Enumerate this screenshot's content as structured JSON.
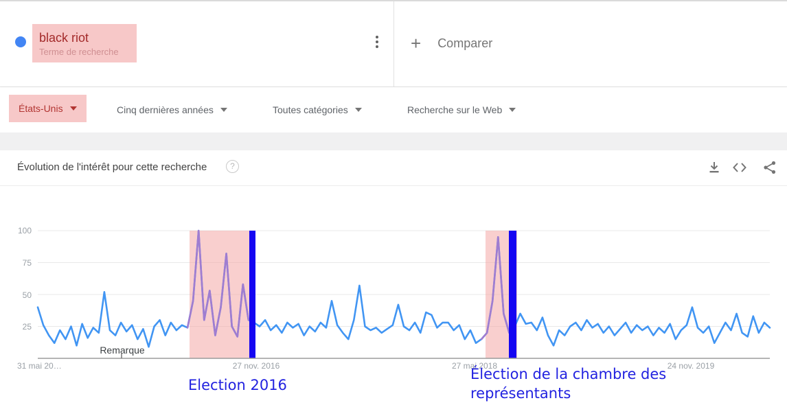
{
  "header": {
    "term": {
      "label": "black riot",
      "sublabel": "Terme de recherche"
    },
    "compare": {
      "plus_label": "+",
      "label": "Comparer"
    }
  },
  "filters": {
    "region": "États-Unis",
    "time": "Cinq dernières années",
    "category": "Toutes catégories",
    "search_type": "Recherche sur le Web"
  },
  "section": {
    "title": "Évolution de l'intérêt pour cette recherche",
    "help_label": "?"
  },
  "chart_data": {
    "type": "line",
    "title": "Évolution de l'intérêt pour cette recherche",
    "xlabel": "",
    "ylabel": "",
    "ylim": [
      0,
      100
    ],
    "grid": true,
    "y_tick_labels": [
      "100",
      "75",
      "50",
      "25"
    ],
    "x_tick_labels": [
      "31 mai 20…",
      "27 nov. 2016",
      "27 mai 2018",
      "24 nov. 2019"
    ],
    "note_label": "Remarque",
    "note_tick_x": 177,
    "series": [
      {
        "name": "black riot",
        "values": [
          40,
          26,
          18,
          12,
          22,
          15,
          25,
          10,
          27,
          16,
          24,
          20,
          52,
          22,
          18,
          28,
          21,
          26,
          15,
          23,
          9,
          25,
          30,
          18,
          28,
          22,
          26,
          24,
          45,
          100,
          30,
          53,
          18,
          40,
          82,
          25,
          17,
          58,
          30,
          28,
          25,
          30,
          22,
          26,
          20,
          28,
          24,
          27,
          18,
          25,
          21,
          28,
          24,
          45,
          26,
          20,
          15,
          30,
          57,
          25,
          22,
          24,
          20,
          23,
          26,
          42,
          25,
          22,
          28,
          20,
          36,
          34,
          24,
          28,
          28,
          22,
          26,
          15,
          22,
          12,
          15,
          20,
          45,
          95,
          35,
          20,
          25,
          35,
          27,
          28,
          22,
          32,
          18,
          10,
          22,
          18,
          25,
          28,
          22,
          30,
          24,
          27,
          20,
          25,
          18,
          23,
          28,
          20,
          26,
          22,
          25,
          18,
          24,
          20,
          27,
          15,
          22,
          26,
          40,
          24,
          20,
          25,
          12,
          20,
          28,
          22,
          35,
          20,
          17,
          33,
          20,
          28,
          24
        ]
      }
    ],
    "highlight_regions": [
      {
        "x": 276,
        "w": 87
      },
      {
        "x": 707,
        "w": 46
      }
    ],
    "event_bars": [
      {
        "x": 363,
        "w": 9
      },
      {
        "x": 741,
        "w": 11
      }
    ],
    "purple_index_ranges": [
      [
        27,
        38
      ],
      [
        80,
        86
      ]
    ],
    "annotations": [
      {
        "text": "Election 2016"
      },
      {
        "text": "Élection de la chambre des représentants"
      }
    ],
    "colors": {
      "line_blue": "#4195f3",
      "line_purple": "#a07cd0",
      "highlight_pink": "#f4a09e",
      "event_bar_blue": "#1506f2",
      "annotation_blue": "#2222e0",
      "term_red": "#a32a2a",
      "chip_pink": "#f7c8c8"
    },
    "legend_position": "none"
  }
}
